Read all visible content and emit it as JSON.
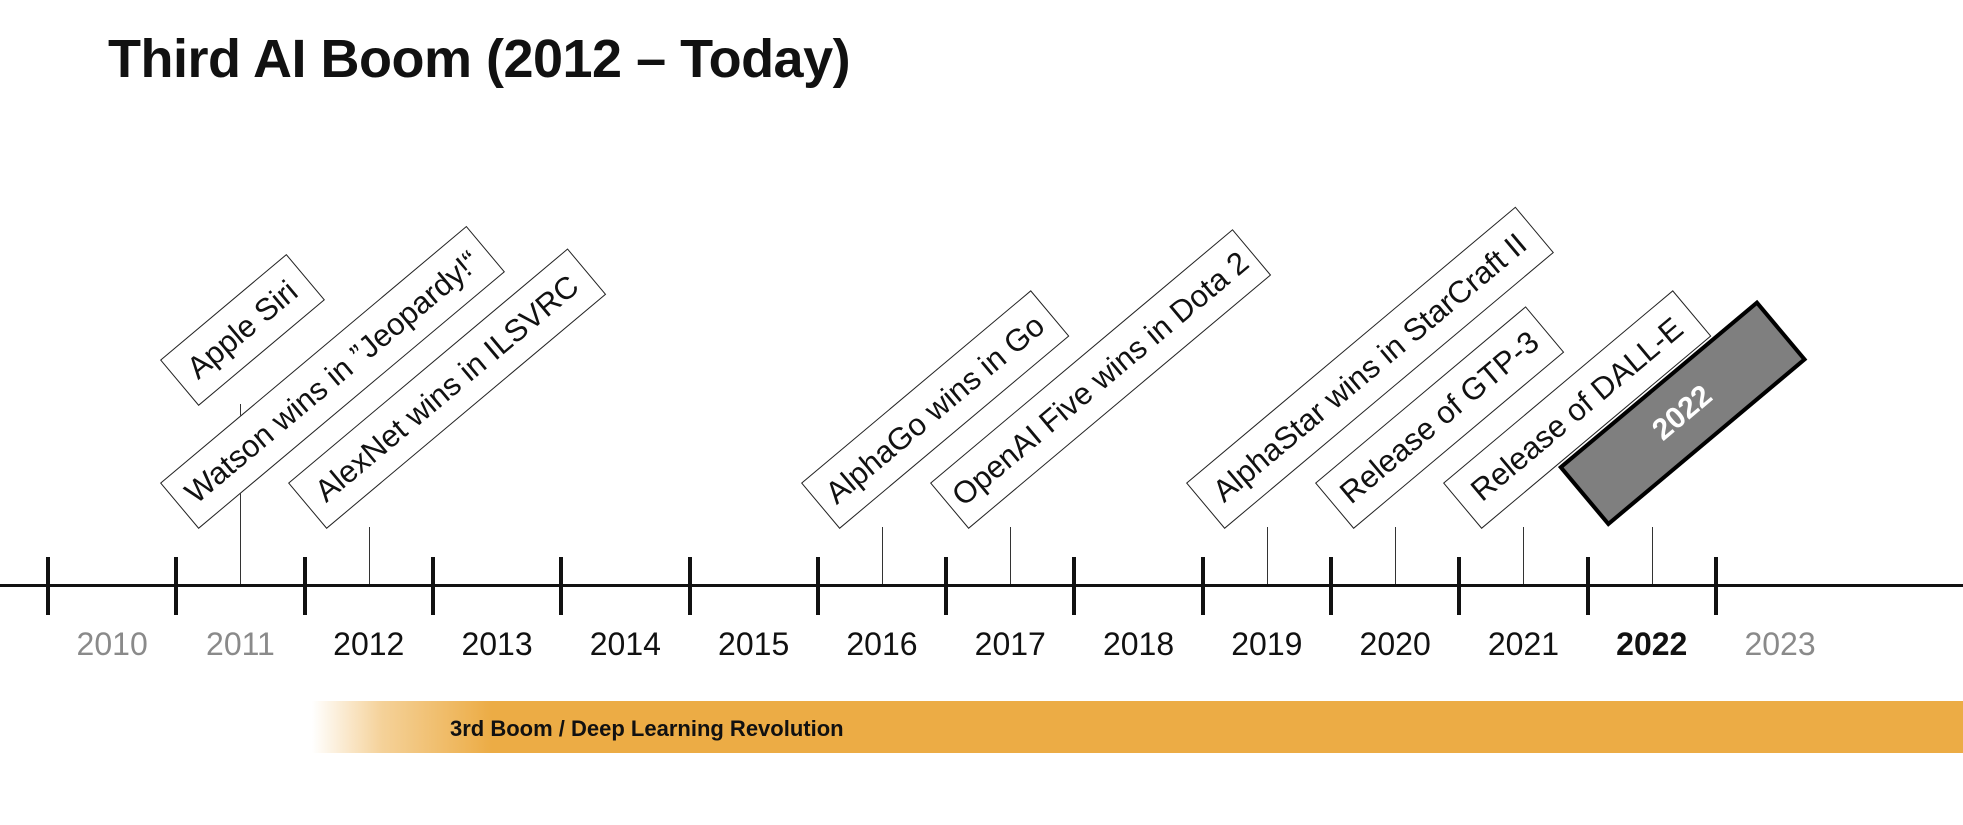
{
  "title": "Third AI Boom (2012 – Today)",
  "years": [
    {
      "label": "2010",
      "style": "faded"
    },
    {
      "label": "2011",
      "style": "faded"
    },
    {
      "label": "2012",
      "style": "normal"
    },
    {
      "label": "2013",
      "style": "normal"
    },
    {
      "label": "2014",
      "style": "normal"
    },
    {
      "label": "2015",
      "style": "normal"
    },
    {
      "label": "2016",
      "style": "normal"
    },
    {
      "label": "2017",
      "style": "normal"
    },
    {
      "label": "2018",
      "style": "normal"
    },
    {
      "label": "2019",
      "style": "normal"
    },
    {
      "label": "2020",
      "style": "normal"
    },
    {
      "label": "2021",
      "style": "normal"
    },
    {
      "label": "2022",
      "style": "current"
    },
    {
      "label": "2023",
      "style": "faded"
    }
  ],
  "events": [
    {
      "label": "Apple Siri",
      "year_index": 1
    },
    {
      "label": "Watson wins in ”Jeopardy!“",
      "year_index": 1
    },
    {
      "label": "AlexNet wins in ILSVRC",
      "year_index": 2
    },
    {
      "label": "AlphaGo wins in Go",
      "year_index": 6
    },
    {
      "label": "OpenAI Five wins in Dota 2",
      "year_index": 7
    },
    {
      "label": "AlphaStar wins in StarCraft II",
      "year_index": 9
    },
    {
      "label": "Release of GTP-3",
      "year_index": 10
    },
    {
      "label": "Release of DALL-E",
      "year_index": 11
    }
  ],
  "current_marker": {
    "label": "2022",
    "year_index": 12
  },
  "band": {
    "label": "3rd Boom / Deep Learning Revolution",
    "color": "#ecac45"
  },
  "colors": {
    "axis": "#111111",
    "faded_year": "#8a8a8a",
    "highlight_fill": "#7f7f7f"
  }
}
